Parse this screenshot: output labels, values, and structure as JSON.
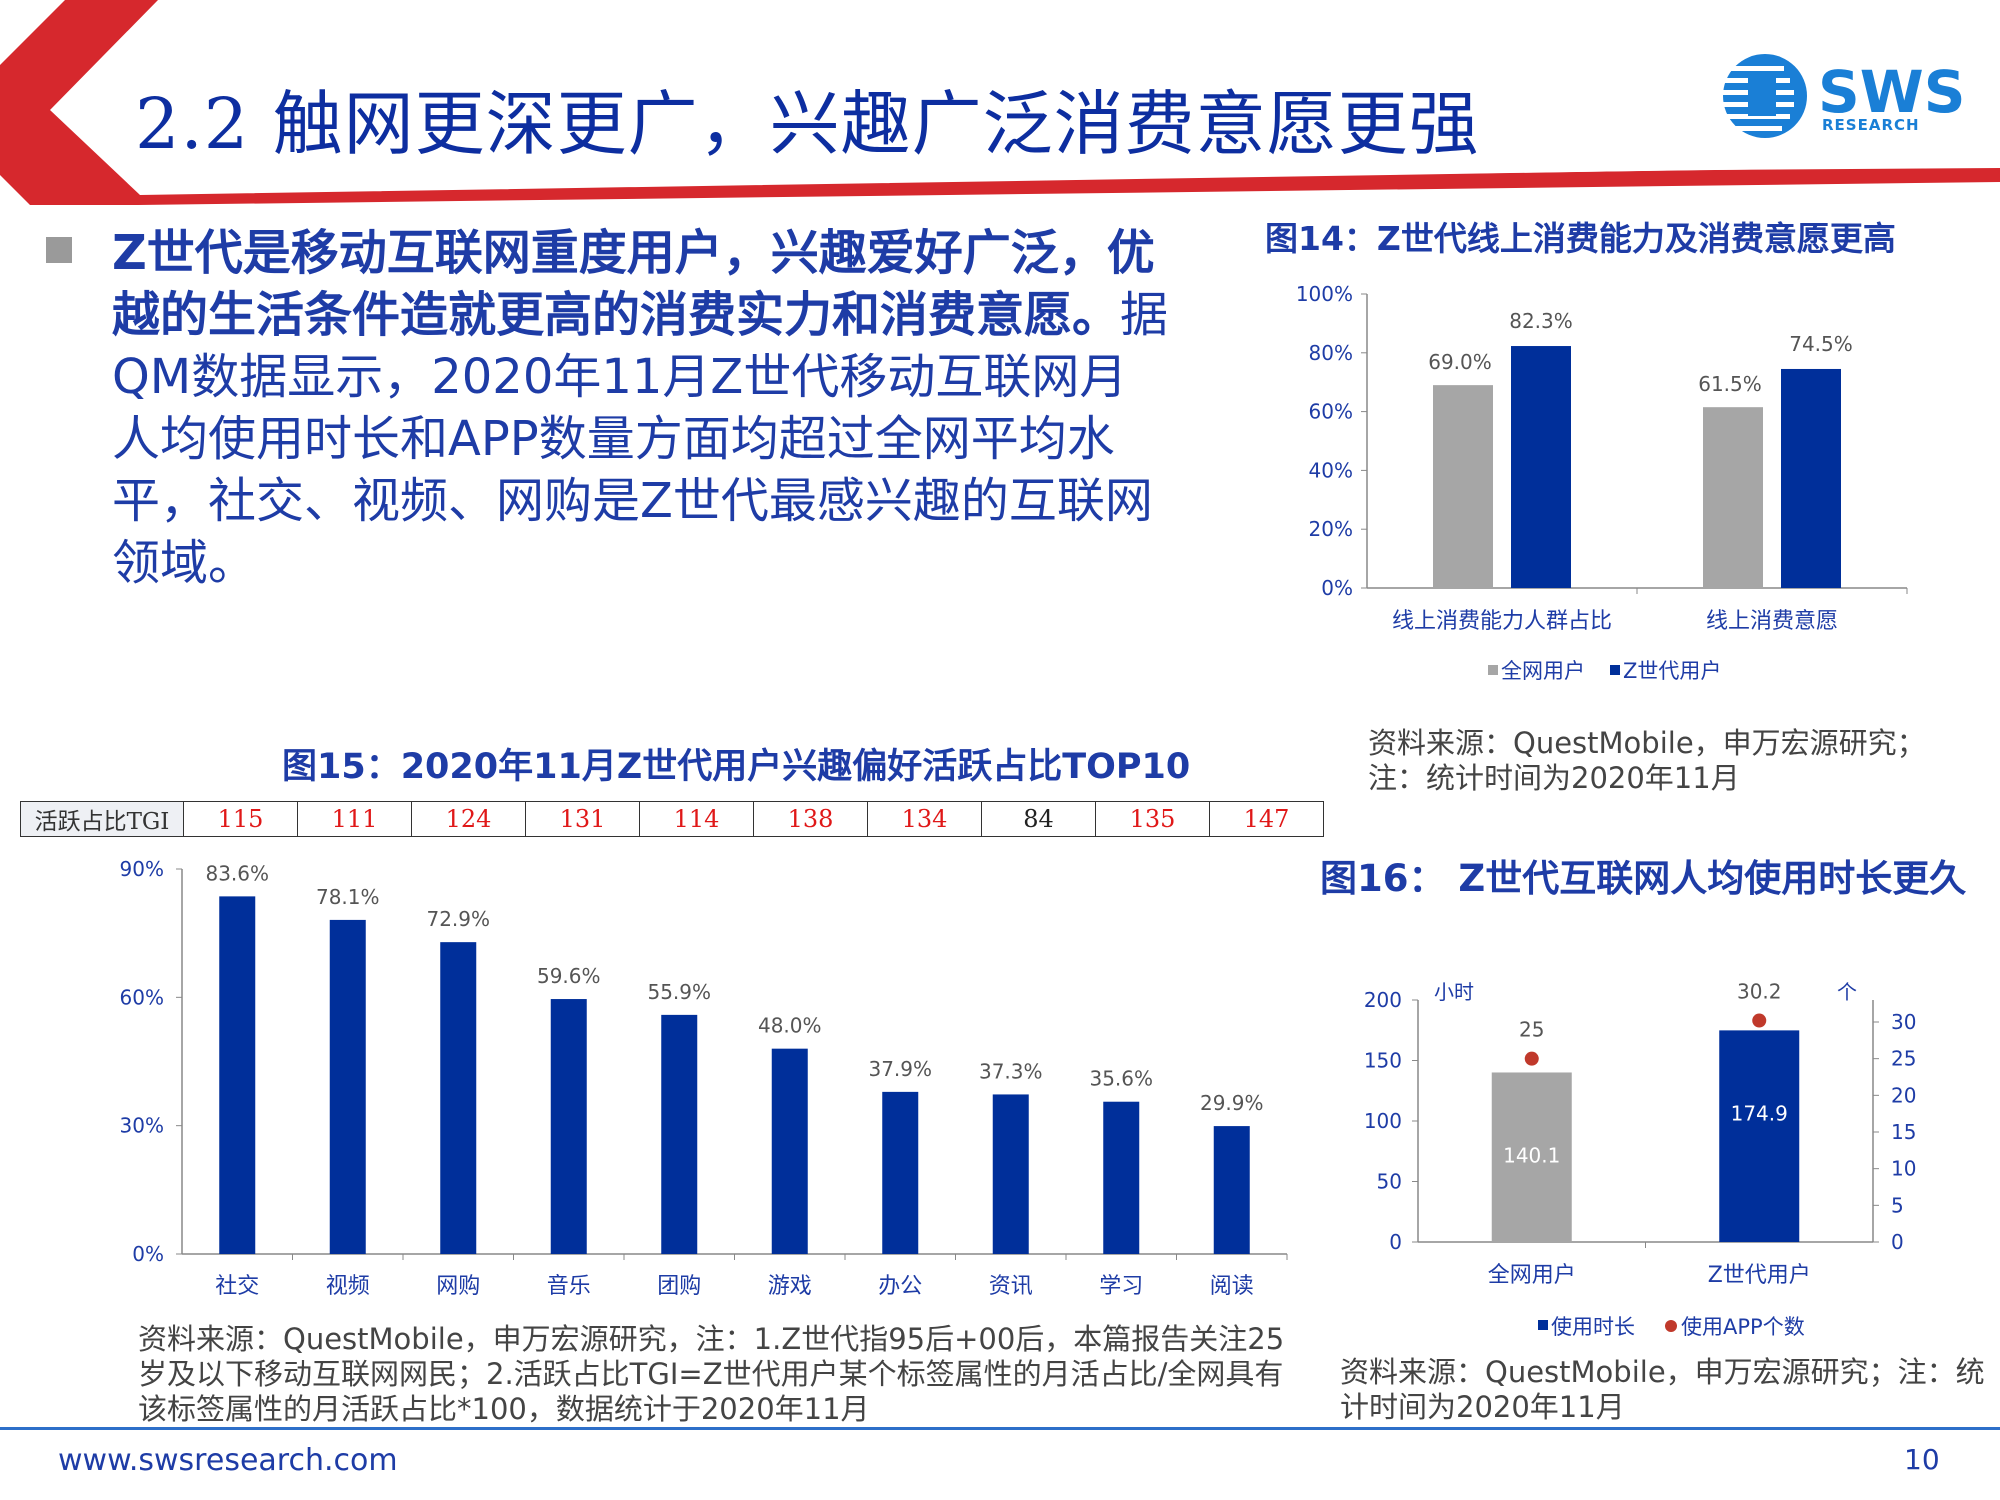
{
  "header": {
    "title": "2.2 触网更深更广，兴趣广泛消费意愿更强",
    "logo_text": "SWS",
    "logo_sub": "RESEARCH"
  },
  "bullet": {
    "bold_text": "Z世代是移动互联网重度用户，兴趣爱好广泛，优越的生活条件造就更高的消费实力和消费意愿。",
    "text": "据QM数据显示，2020年11月Z世代移动互联网月人均使用时长和APP数量方面均超过全网平均水平，社交、视频、网购是Z世代最感兴趣的互联网领域。"
  },
  "fig14": {
    "title": "图14：Z世代线上消费能力及消费意愿更高",
    "source": "资料来源：QuestMobile，申万宏源研究；注：统计时间为2020年11月"
  },
  "fig15": {
    "title": "图15：2020年11月Z世代用户兴趣偏好活跃占比TOP10",
    "tgi_label": "活跃占比TGI",
    "tgi_values": [
      "115",
      "111",
      "124",
      "131",
      "114",
      "138",
      "134",
      "84",
      "135",
      "147"
    ],
    "source": "资料来源：QuestMobile，申万宏源研究，注：1.Z世代指95后+00后，本篇报告关注25岁及以下移动互联网网民；2.活跃占比TGI=Z世代用户某个标签属性的月活占比/全网具有该标签属性的月活跃占比*100，数据统计于2020年11月"
  },
  "fig16": {
    "title": "图16： Z世代互联网人均使用时长更久",
    "source": "资料来源：QuestMobile，申万宏源研究；注：统计时间为2020年11月"
  },
  "footer": {
    "url": "www.swsresearch.com",
    "page": "10"
  },
  "colors": {
    "brand_blue": "#0d2ea0",
    "bar_blue": "#002f9a",
    "bar_gray": "#a6a6a6",
    "red": "#d6282d",
    "dot_red": "#c0392b"
  },
  "chart_data": [
    {
      "type": "bar",
      "categories": [
        "线上消费能力人群占比",
        "线上消费意愿"
      ],
      "series": [
        {
          "name": "全网用户",
          "values": [
            69.0,
            61.5
          ]
        },
        {
          "name": "Z世代用户",
          "values": [
            82.3,
            74.5
          ]
        }
      ],
      "data_labels": [
        [
          "69.0%",
          "61.5%"
        ],
        [
          "82.3%",
          "74.5%"
        ]
      ],
      "yticks": [
        "0%",
        "20%",
        "40%",
        "60%",
        "80%",
        "100%"
      ],
      "ylim": [
        0,
        100
      ],
      "legend": "bottom"
    },
    {
      "type": "bar",
      "categories": [
        "社交",
        "视频",
        "网购",
        "音乐",
        "团购",
        "游戏",
        "办公",
        "资讯",
        "学习",
        "阅读"
      ],
      "values": [
        83.6,
        78.1,
        72.9,
        59.6,
        55.9,
        48.0,
        37.9,
        37.3,
        35.6,
        29.9
      ],
      "data_labels": [
        "83.6%",
        "78.1%",
        "72.9%",
        "59.6%",
        "55.9%",
        "48.0%",
        "37.9%",
        "37.3%",
        "35.6%",
        "29.9%"
      ],
      "yticks": [
        "0%",
        "30%",
        "60%",
        "90%"
      ],
      "ylim": [
        0,
        90
      ]
    },
    {
      "type": "bar",
      "categories": [
        "全网用户",
        "Z世代用户"
      ],
      "series": [
        {
          "name": "使用时长",
          "values": [
            140.1,
            174.9
          ],
          "axis": "left",
          "labels": [
            "140.1",
            "174.9"
          ]
        },
        {
          "name": "使用APP个数",
          "values": [
            25,
            30.2
          ],
          "axis": "right",
          "marker": "dot",
          "labels": [
            "25",
            "30.2"
          ]
        }
      ],
      "yleft_label": "小时",
      "yright_label": "个",
      "yleft_ticks": [
        "0",
        "50",
        "100",
        "150",
        "200"
      ],
      "yright_ticks": [
        "0",
        "5",
        "10",
        "15",
        "20",
        "25",
        "30"
      ],
      "yleft_lim": [
        0,
        200
      ],
      "yright_lim": [
        0,
        33
      ],
      "legend": "bottom"
    }
  ]
}
